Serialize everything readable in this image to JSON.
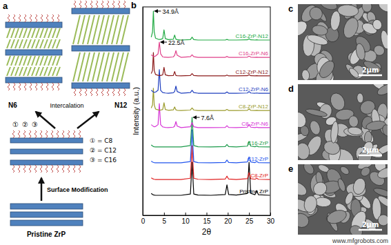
{
  "chart_data": {
    "type": "line",
    "title": "b",
    "x_label": "2θ",
    "y_label": "Intensity (a.u.)",
    "xlim": [
      0,
      30
    ],
    "xticks": [
      0,
      5,
      10,
      15,
      20,
      25,
      30
    ],
    "ylim": [
      0,
      100
    ],
    "tick_labels": "x",
    "x": [
      2.0,
      2.3,
      2.5,
      2.7,
      3.0,
      3.6,
      3.9,
      4.2,
      4.7,
      5.0,
      5.3,
      6.0,
      7.2,
      7.5,
      7.8,
      8.1,
      9.0,
      11.2,
      11.6,
      12.0,
      13.0,
      16.0,
      19.4,
      19.8,
      20.2,
      22.0,
      24.6,
      25.0,
      25.4,
      26.4,
      26.8,
      27.2,
      29.9
    ],
    "series": [
      {
        "name": "Pristine ZrP",
        "color": "#000000",
        "values": [
          10.5,
          10,
          9.8,
          9.7,
          9.6,
          9.6,
          9.6,
          9.6,
          9.6,
          9.6,
          9.6,
          9.6,
          9.6,
          9.6,
          9.6,
          9.6,
          9.6,
          10.2,
          25.5,
          10.2,
          9.7,
          9.6,
          10,
          14.6,
          10,
          9.7,
          10.5,
          25.5,
          10.5,
          9.9,
          11.9,
          9.9,
          9.6
        ]
      },
      {
        "name": "C8-ZrP",
        "color": "#e02020",
        "values": [
          18,
          17.6,
          17.4,
          17.3,
          17.2,
          17.2,
          17.2,
          17.2,
          17.2,
          17.2,
          17.2,
          17.2,
          17.2,
          17.2,
          17.2,
          17.2,
          17.2,
          17.8,
          33.4,
          17.8,
          17.3,
          17.2,
          17.4,
          18.8,
          17.4,
          17.2,
          17.6,
          20.5,
          17.6,
          17.3,
          17.8,
          17.3,
          17.2
        ]
      },
      {
        "name": "C12-ZrP",
        "color": "#2255ee",
        "values": [
          26,
          25.6,
          25.4,
          25.3,
          25.2,
          25.2,
          25.2,
          25.2,
          25.2,
          25.2,
          25.2,
          25.2,
          25.2,
          25.2,
          25.2,
          25.2,
          25.2,
          25.8,
          41,
          25.8,
          25.3,
          25.2,
          25.4,
          26.5,
          25.4,
          25.2,
          25.6,
          28,
          25.6,
          25.3,
          25.8,
          25.3,
          25.2
        ]
      },
      {
        "name": "C16-ZrP",
        "color": "#1a9a4a",
        "values": [
          33.8,
          33.3,
          33,
          32.9,
          32.8,
          32.8,
          32.8,
          32.8,
          32.8,
          32.8,
          32.8,
          32.8,
          32.8,
          32.8,
          32.8,
          32.8,
          32.8,
          33.5,
          47,
          33.5,
          32.9,
          32.8,
          33,
          34,
          33,
          32.8,
          33.2,
          35.5,
          33.2,
          32.9,
          33.3,
          32.9,
          32.8
        ]
      },
      {
        "name": "C8-ZrP-N6",
        "color": "#d633d6",
        "values": [
          43.5,
          43,
          42.7,
          42.5,
          42.6,
          43.5,
          53.6,
          43.5,
          42.4,
          42.3,
          42.2,
          42.1,
          42.3,
          42.8,
          45,
          42.8,
          42.1,
          42.5,
          44.5,
          42.5,
          42.1,
          42.1,
          42.2,
          43,
          42.2,
          42.1,
          42.3,
          43.5,
          42.3,
          42.1,
          42.3,
          42.1,
          42.1
        ]
      },
      {
        "name": "C8-ZrP-N12",
        "color": "#9a9a2a",
        "values": [
          51.5,
          53,
          61,
          53,
          51,
          50.6,
          50.5,
          50.5,
          50.8,
          54,
          50.8,
          50.4,
          50.6,
          52,
          50.6,
          50.4,
          50.3,
          50.5,
          51.5,
          50.5,
          50.3,
          50.3,
          50.3,
          50.8,
          50.3,
          50.3,
          50.4,
          51,
          50.4,
          50.3,
          50.4,
          50.3,
          50.3
        ]
      },
      {
        "name": "C12-ZrP-N6",
        "color": "#1f3fbf",
        "values": [
          60,
          59.5,
          59.2,
          59,
          59.1,
          60,
          69.9,
          60,
          58.9,
          58.8,
          58.7,
          58.6,
          58.8,
          59.4,
          62,
          59.4,
          58.6,
          58.9,
          60,
          58.9,
          58.6,
          58.6,
          58.6,
          59.2,
          58.6,
          58.6,
          58.7,
          59.4,
          58.7,
          58.6,
          58.7,
          58.6,
          58.6
        ]
      },
      {
        "name": "C12-ZrP-N12",
        "color": "#8b1a1a",
        "values": [
          68,
          69.5,
          78.1,
          69.5,
          67.6,
          67.2,
          67.1,
          67.1,
          67.4,
          71,
          67.4,
          67,
          67.1,
          69,
          67.1,
          67,
          66.9,
          67.1,
          68,
          67.1,
          66.9,
          66.9,
          66.9,
          67.3,
          66.9,
          66.9,
          67,
          67.5,
          67,
          66.9,
          67,
          66.9,
          66.9
        ]
      },
      {
        "name": "C16-ZrP-N6",
        "color": "#e0408a",
        "values": [
          77,
          76.6,
          76.3,
          76.2,
          76.4,
          77.5,
          83.1,
          77.5,
          76,
          75.9,
          75.9,
          75.8,
          76,
          76.8,
          79,
          76.8,
          75.8,
          76.1,
          77,
          76.1,
          75.8,
          75.8,
          75.8,
          76.2,
          75.8,
          75.8,
          75.9,
          76.4,
          75.9,
          75.8,
          75.9,
          75.8,
          75.8
        ]
      },
      {
        "name": "C16-ZrP-N12",
        "color": "#22aa44",
        "values": [
          85.5,
          88,
          98,
          88,
          85,
          84.5,
          84.4,
          84.4,
          84.8,
          89,
          84.8,
          84.3,
          84.5,
          86.5,
          84.5,
          84.3,
          84.1,
          84.3,
          85.5,
          84.3,
          84.1,
          84.1,
          84.1,
          84.4,
          84.1,
          84.1,
          84.2,
          84.7,
          84.2,
          84.1,
          84.2,
          84.1,
          84.1
        ]
      }
    ],
    "annotations": [
      {
        "text": "34.9Å",
        "x": 2.5,
        "y": 98
      },
      {
        "text": "22.5Å",
        "x": 3.9,
        "y": 83.1
      },
      {
        "text": "7.6Å",
        "x": 11.6,
        "y": 47
      }
    ]
  },
  "diagram": {
    "label": "a",
    "left_agent": "N6",
    "right_agent": "N12",
    "upper_step": "Intercalation",
    "chain_marks": [
      "①",
      "②",
      "③"
    ],
    "lower_step": "Surface Modification",
    "key": [
      "① = C8",
      "② = C12",
      "③ = C16"
    ],
    "bottom_label": "Pristine ZrP"
  },
  "images": [
    {
      "label": "c",
      "scale_bar": "2μm"
    },
    {
      "label": "d",
      "scale_bar": "2μm"
    },
    {
      "label": "e",
      "scale_bar": "2μm"
    }
  ],
  "watermark": "www.mfgrobots.com"
}
